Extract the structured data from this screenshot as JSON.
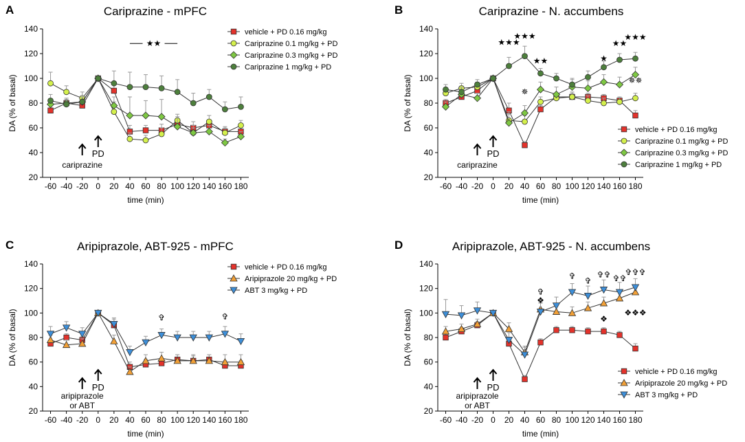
{
  "figure": {
    "colors": {
      "vehicle": "#e4322b",
      "cari01": "#d4f04c",
      "cari03": "#7ec843",
      "cari1": "#4d7f3c",
      "aripiprazole": "#f2a036",
      "abt": "#3d8fd9",
      "hollow_star": "#aaaaaa",
      "error": "#999999",
      "line": "#333333"
    },
    "shared": {
      "x_ticks": [
        -60,
        -40,
        -20,
        0,
        20,
        40,
        60,
        80,
        100,
        120,
        140,
        160,
        180
      ],
      "y_ticks": [
        20,
        40,
        60,
        80,
        100,
        120,
        140
      ],
      "xlim": [
        -70,
        190
      ],
      "ylim": [
        20,
        140
      ],
      "xlabel": "time (min)",
      "ylabel": "DA (% of basal)",
      "pd_label": "PD"
    }
  },
  "chart_data": [
    {
      "type": "line",
      "letter": "A",
      "title": "Cariprazine - mPFC",
      "xlabel": "time (min)",
      "ylabel": "DA (% of basal)",
      "ylim": [
        20,
        140
      ],
      "legend_position": "top-right",
      "x": [
        -60,
        -40,
        -20,
        0,
        20,
        40,
        60,
        80,
        100,
        120,
        140,
        160,
        180
      ],
      "series": [
        {
          "name": "vehicle + PD 0.16 mg/kg",
          "color_key": "vehicle",
          "marker": "square",
          "values": [
            74,
            80,
            78,
            100,
            90,
            57,
            58,
            58,
            63,
            60,
            62,
            57,
            57
          ],
          "errors": [
            2,
            3,
            3,
            0,
            5,
            5,
            4,
            5,
            4,
            5,
            4,
            4,
            4
          ]
        },
        {
          "name": "Cariprazine 0.1 mg/kg + PD",
          "color_key": "cari01",
          "marker": "circle",
          "values": [
            96,
            89,
            84,
            100,
            73,
            51,
            50,
            55,
            66,
            56,
            65,
            56,
            62
          ],
          "errors": [
            9,
            5,
            5,
            0,
            8,
            5,
            4,
            5,
            5,
            4,
            5,
            4,
            4
          ]
        },
        {
          "name": "Cariprazine 0.3 mg/kg + PD",
          "color_key": "cari03",
          "marker": "diamond",
          "values": [
            79,
            80,
            81,
            100,
            78,
            70,
            70,
            69,
            61,
            56,
            57,
            48,
            53
          ],
          "errors": [
            4,
            4,
            4,
            0,
            7,
            15,
            12,
            14,
            8,
            6,
            5,
            3,
            4
          ]
        },
        {
          "name": "Cariprazine 1 mg/kg + PD",
          "color_key": "cari1",
          "marker": "circle",
          "values": [
            82,
            79,
            81,
            100,
            96,
            93,
            93,
            92,
            89,
            80,
            85,
            75,
            77
          ],
          "errors": [
            5,
            4,
            5,
            0,
            10,
            12,
            10,
            10,
            10,
            8,
            6,
            6,
            8
          ]
        }
      ],
      "annotations": {
        "drug_label": "cariprazine",
        "stars": [
          {
            "text": "★★",
            "x": 70,
            "y": 126,
            "bracket": [
              40,
              100
            ]
          }
        ]
      }
    },
    {
      "type": "line",
      "letter": "B",
      "title": "Cariprazine - N. accumbens",
      "xlabel": "time (min)",
      "ylabel": "DA (% of basal)",
      "ylim": [
        20,
        140
      ],
      "legend_position": "bottom-right",
      "x": [
        -60,
        -40,
        -20,
        0,
        20,
        40,
        60,
        80,
        100,
        120,
        140,
        160,
        180
      ],
      "series": [
        {
          "name": "vehicle + PD 0.16 mg/kg",
          "color_key": "vehicle",
          "marker": "square",
          "values": [
            80,
            85,
            90,
            100,
            74,
            46,
            75,
            85,
            85,
            85,
            84,
            82,
            70
          ],
          "errors": [
            3,
            3,
            3,
            0,
            6,
            3,
            3,
            3,
            3,
            3,
            3,
            3,
            4
          ]
        },
        {
          "name": "Cariprazine 0.1 mg/kg + PD",
          "color_key": "cari01",
          "marker": "circle",
          "values": [
            88,
            92,
            93,
            100,
            66,
            65,
            81,
            84,
            85,
            82,
            80,
            81,
            84
          ],
          "errors": [
            4,
            4,
            4,
            0,
            7,
            5,
            4,
            4,
            4,
            4,
            4,
            4,
            4
          ]
        },
        {
          "name": "Cariprazine 0.3 mg/kg + PD",
          "color_key": "cari03",
          "marker": "diamond",
          "values": [
            77,
            87,
            84,
            100,
            64,
            72,
            91,
            87,
            93,
            92,
            97,
            95,
            103
          ],
          "errors": [
            4,
            4,
            4,
            0,
            7,
            6,
            6,
            6,
            6,
            6,
            6,
            6,
            6
          ]
        },
        {
          "name": "Cariprazine 1 mg/kg + PD",
          "color_key": "cari1",
          "marker": "circle",
          "values": [
            91,
            89,
            95,
            100,
            110,
            118,
            104,
            100,
            95,
            101,
            109,
            115,
            116
          ],
          "errors": [
            4,
            4,
            4,
            0,
            7,
            8,
            4,
            4,
            5,
            5,
            5,
            5,
            5
          ]
        }
      ],
      "annotations": {
        "drug_label": "cariprazine",
        "stars": [
          {
            "text": "★★★",
            "x": 20,
            "y": 127
          },
          {
            "text": "★★★",
            "x": 40,
            "y": 132
          },
          {
            "text": "★★",
            "x": 60,
            "y": 112
          },
          {
            "text": "★",
            "x": 140,
            "y": 114
          },
          {
            "text": "★★",
            "x": 160,
            "y": 126
          },
          {
            "text": "★★★",
            "x": 180,
            "y": 131
          }
        ],
        "hollow_marks": [
          {
            "text": "✵",
            "x": 40,
            "y": 87
          },
          {
            "text": "✵✵",
            "x": 180,
            "y": 96
          }
        ]
      }
    },
    {
      "type": "line",
      "letter": "C",
      "title": "Aripiprazole, ABT-925 - mPFC",
      "xlabel": "time (min)",
      "ylabel": "DA (% of basal)",
      "ylim": [
        20,
        140
      ],
      "legend_position": "top-right",
      "x": [
        -60,
        -40,
        -20,
        0,
        20,
        40,
        60,
        80,
        100,
        120,
        140,
        160,
        180
      ],
      "series": [
        {
          "name": "vehicle + PD 0.16 mg/kg",
          "color_key": "vehicle",
          "marker": "square",
          "values": [
            75,
            80,
            78,
            100,
            90,
            56,
            58,
            59,
            62,
            61,
            62,
            57,
            57
          ],
          "errors": [
            3,
            3,
            3,
            0,
            5,
            4,
            4,
            4,
            4,
            4,
            4,
            4,
            4
          ]
        },
        {
          "name": "Aripiprazole 20 mg/kg + PD",
          "color_key": "aripiprazole",
          "marker": "triangle-up",
          "values": [
            78,
            74,
            75,
            100,
            77,
            52,
            61,
            63,
            61,
            61,
            61,
            60,
            60
          ],
          "errors": [
            4,
            4,
            4,
            0,
            5,
            4,
            5,
            5,
            5,
            5,
            5,
            6,
            6
          ]
        },
        {
          "name": "ABT 3 mg/kg + PD",
          "color_key": "abt",
          "marker": "triangle-down",
          "values": [
            83,
            88,
            83,
            100,
            91,
            68,
            76,
            82,
            80,
            80,
            80,
            83,
            77
          ],
          "errors": [
            6,
            5,
            5,
            0,
            5,
            5,
            5,
            5,
            5,
            5,
            5,
            6,
            6
          ]
        }
      ],
      "annotations": {
        "drug_label_line1": "aripiprazole",
        "drug_label_line2": "or ABT",
        "hollow_marks": [
          {
            "text": "✞",
            "x": 80,
            "y": 94
          },
          {
            "text": "✞",
            "x": 160,
            "y": 95
          }
        ]
      }
    },
    {
      "type": "line",
      "letter": "D",
      "title": "Aripiprazole, ABT-925 - N. accumbens",
      "xlabel": "time (min)",
      "ylabel": "DA (% of basal)",
      "ylim": [
        20,
        140
      ],
      "legend_position": "bottom-right",
      "x": [
        -60,
        -40,
        -20,
        0,
        20,
        40,
        60,
        80,
        100,
        120,
        140,
        160,
        180
      ],
      "series": [
        {
          "name": "vehicle + PD 0.16 mg/kg",
          "color_key": "vehicle",
          "marker": "square",
          "values": [
            80,
            85,
            90,
            100,
            75,
            46,
            76,
            86,
            86,
            85,
            85,
            82,
            71
          ],
          "errors": [
            3,
            3,
            3,
            0,
            5,
            3,
            3,
            3,
            3,
            3,
            3,
            3,
            4
          ]
        },
        {
          "name": "Aripiprazole 20 mg/kg + PD",
          "color_key": "aripiprazole",
          "marker": "triangle-up",
          "values": [
            85,
            87,
            91,
            100,
            87,
            68,
            103,
            101,
            100,
            104,
            108,
            112,
            117
          ],
          "errors": [
            4,
            4,
            4,
            0,
            5,
            5,
            6,
            5,
            5,
            5,
            5,
            6,
            6
          ]
        },
        {
          "name": "ABT 3 mg/kg + PD",
          "color_key": "abt",
          "marker": "triangle-down",
          "values": [
            99,
            98,
            102,
            100,
            78,
            66,
            101,
            106,
            117,
            114,
            119,
            117,
            121
          ],
          "errors": [
            12,
            8,
            7,
            0,
            6,
            6,
            7,
            7,
            7,
            8,
            8,
            8,
            7
          ]
        }
      ],
      "annotations": {
        "drug_label_line1": "aripiprazole",
        "drug_label_line2": "or ABT",
        "hollow_marks": [
          {
            "text": "✞",
            "x": 60,
            "y": 115
          },
          {
            "text": "✞",
            "x": 100,
            "y": 128
          },
          {
            "text": "✞",
            "x": 120,
            "y": 124
          },
          {
            "text": "✞✞",
            "x": 140,
            "y": 129
          },
          {
            "text": "✞✞",
            "x": 160,
            "y": 126
          },
          {
            "text": "✞✞✞",
            "x": 180,
            "y": 131
          }
        ],
        "diamond_marks": [
          {
            "text": "❖",
            "x": 60,
            "y": 108
          },
          {
            "text": "❖",
            "x": 140,
            "y": 93
          },
          {
            "text": "❖❖❖",
            "x": 180,
            "y": 98
          }
        ]
      }
    }
  ]
}
